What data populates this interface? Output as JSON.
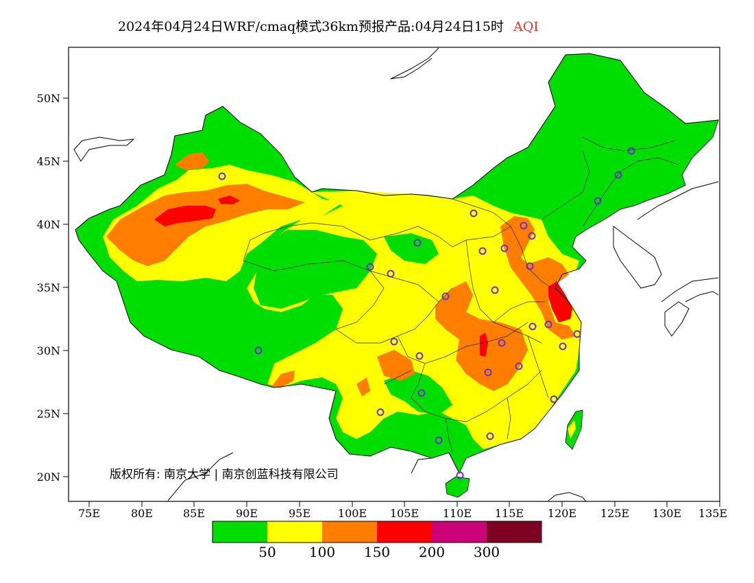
{
  "title": {
    "main": "2024年04月24日WRF/cmaq模式36km预报产品:04月24日15时",
    "pollutant": "AQI"
  },
  "axes": {
    "x_ticks": [
      "75E",
      "80E",
      "85E",
      "90E",
      "95E",
      "100E",
      "105E",
      "110E",
      "115E",
      "120E",
      "125E",
      "130E",
      "135E"
    ],
    "y_ticks": [
      "50N",
      "45N",
      "40N",
      "35N",
      "30N",
      "25N",
      "20N"
    ],
    "lon_range": [
      73,
      135
    ],
    "lat_range": [
      18,
      54
    ]
  },
  "legend": {
    "colors": [
      "#00dd00",
      "#ffff00",
      "#ff7e00",
      "#ff0000",
      "#cc0077",
      "#7e0023"
    ],
    "labels": [
      "50",
      "100",
      "150",
      "200",
      "300"
    ],
    "categories": [
      "0-50",
      "50-100",
      "100-150",
      "150-200",
      "200-300",
      ">300"
    ]
  },
  "copyright": "版权所有: 南京大学 | 南京创蓝科技有限公司",
  "regions": [
    {
      "level": "yellow",
      "place": "Xinjiang / Tarim"
    },
    {
      "level": "orange",
      "place": "Tarim Basin"
    },
    {
      "level": "red",
      "place": "Taklamakan core"
    },
    {
      "level": "green",
      "place": "Tibet / Qinghai / Northeast"
    },
    {
      "level": "orange",
      "place": "Sichuan Basin / Hubei"
    },
    {
      "level": "orange",
      "place": "North China Plain / Shandong"
    },
    {
      "level": "red",
      "place": "Jiangsu coast"
    }
  ],
  "map_colors": {
    "ocean": "#ffffff",
    "border": "#000000",
    "city_marker": "#6a2fd0"
  }
}
